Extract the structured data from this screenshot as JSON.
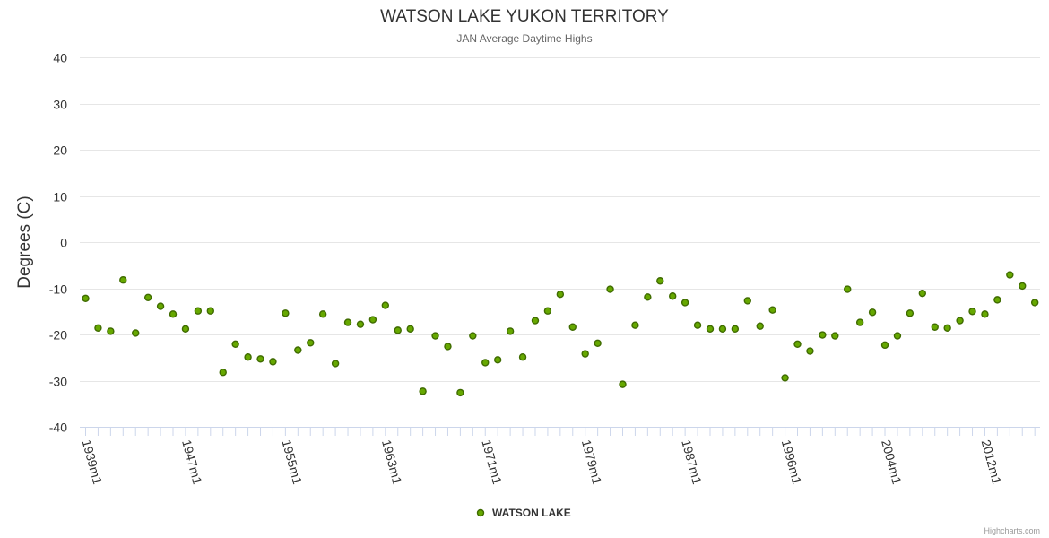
{
  "chart_data": {
    "type": "scatter",
    "title": "WATSON LAKE YUKON TERRITORY",
    "subtitle": "JAN Average Daytime Highs",
    "ylabel": "Degrees (C)",
    "xlabel": "",
    "ylim": [
      -40,
      40
    ],
    "yticks": [
      40,
      30,
      20,
      10,
      0,
      -10,
      -20,
      -30,
      -40
    ],
    "xtick_labels": [
      "1939m1",
      "1947m1",
      "1955m1",
      "1963m1",
      "1971m1",
      "1979m1",
      "1987m1",
      "1996m1",
      "2004m1",
      "2012m1"
    ],
    "xtick_indices": [
      0,
      8,
      16,
      24,
      32,
      40,
      48,
      56,
      64,
      72
    ],
    "series": [
      {
        "name": "WATSON LAKE",
        "color": "#66a800",
        "values": [
          -12.2,
          -18.6,
          -19.3,
          -8.2,
          -19.7,
          -12.0,
          -13.9,
          -15.6,
          -18.8,
          -14.9,
          -14.9,
          -28.2,
          -22.1,
          -24.9,
          -25.3,
          -25.9,
          -15.4,
          -23.4,
          -21.8,
          -15.6,
          -26.3,
          -17.4,
          -17.8,
          -16.8,
          -13.7,
          -19.1,
          -18.8,
          -32.3,
          -20.3,
          -22.6,
          -32.6,
          -20.3,
          -26.1,
          -25.5,
          -19.3,
          -24.9,
          -17.0,
          -14.9,
          -11.3,
          -18.4,
          -24.2,
          -21.9,
          -10.2,
          -30.8,
          -18.0,
          -11.9,
          -8.4,
          -11.7,
          -13.1,
          -18.0,
          -18.8,
          -18.8,
          -18.8,
          -12.7,
          -18.2,
          -14.7,
          -29.4,
          -22.1,
          -23.6,
          -20.1,
          -20.3,
          -10.2,
          -17.4,
          -15.2,
          -22.3,
          -20.3,
          -15.4,
          -11.1,
          -18.4,
          -18.6,
          -17.0,
          -15.0,
          -15.6,
          -12.5,
          -7.1,
          -9.5,
          -13.1
        ]
      }
    ],
    "legend": "bottom-center"
  },
  "credit": "Highcharts.com"
}
